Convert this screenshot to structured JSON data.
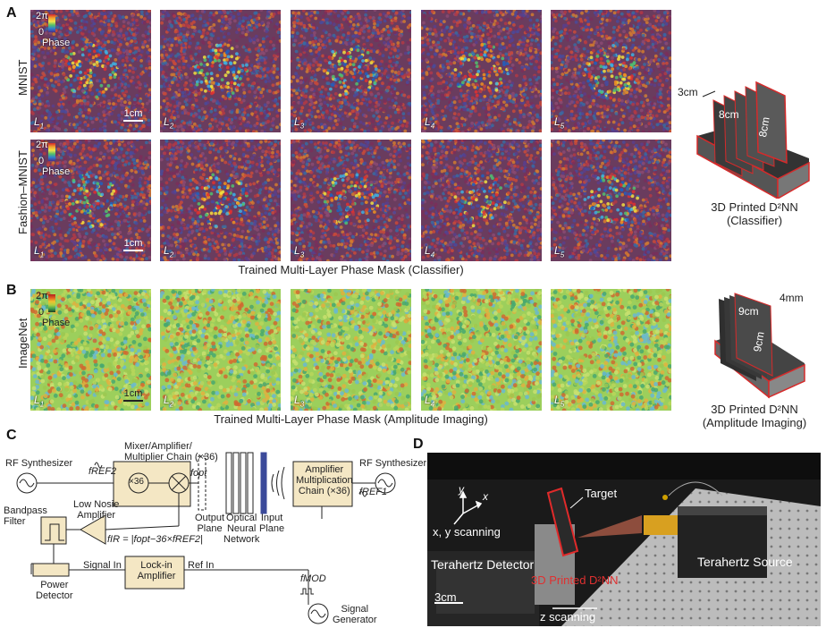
{
  "panels": {
    "a": "A",
    "b": "B",
    "c": "C",
    "d": "D"
  },
  "panel_a": {
    "row_labels": [
      "MNIST",
      "Fashion–MNIST"
    ],
    "layer_labels": [
      "L1",
      "L2",
      "L3",
      "L4",
      "L5"
    ],
    "colorbar_top": "2π",
    "colorbar_bottom": "0",
    "colorbar_label": "Phase",
    "scale_label": "1cm",
    "caption": "Trained Multi-Layer Phase Mask (Classifier)",
    "device_dims": [
      "3cm",
      "8cm",
      "8cm"
    ],
    "device_caption_1": "3D Printed D²NN",
    "device_caption_2": "(Classifier)"
  },
  "panel_b": {
    "row_label": "ImageNet",
    "layer_labels": [
      "L1",
      "L2",
      "L3",
      "L4",
      "L5"
    ],
    "colorbar_top": "2π",
    "colorbar_bottom": "0",
    "colorbar_label": "Phase",
    "scale_label": "1cm",
    "caption": "Trained Multi-Layer Phase Mask (Amplitude Imaging)",
    "device_dims": [
      "4mm",
      "9cm",
      "9cm"
    ],
    "device_caption_1": "3D Printed D²NN",
    "device_caption_2": "(Amplitude Imaging)"
  },
  "panel_c": {
    "rf_synth_left": "RF Synthesizer",
    "rf_synth_right": "RF Synthesizer",
    "f_ref2": "fREF2",
    "f_ref1": "fREF1",
    "mixer_title_1": "Mixer/Amplifier/",
    "mixer_title_2": "Multiplier Chain (×36)",
    "x36": "×36",
    "f_opt": "fopt",
    "bandpass_1": "Bandpass",
    "bandpass_2": "Filter",
    "lna_1": "Low Nosie",
    "lna_2": "Amplifier",
    "f_if_eq": "fIR = |fopt−36×fREF2|",
    "output_plane_1": "Output",
    "output_plane_2": "Plane",
    "onn_1": "Optical",
    "onn_2": "Neural",
    "onn_3": "Network",
    "input_plane_1": "Input",
    "input_plane_2": "Plane",
    "amp_chain_1": "Amplifier",
    "amp_chain_2": "Multiplication",
    "amp_chain_3": "Chain (×36)",
    "signal_in": "Signal In",
    "ref_in": "Ref In",
    "lockin_1": "Lock-in",
    "lockin_2": "Amplifier",
    "power_det_1": "Power",
    "power_det_2": "Detector",
    "f_mod": "fMOD",
    "sig_gen_1": "Signal",
    "sig_gen_2": "Generator"
  },
  "panel_d": {
    "y": "y",
    "x": "x",
    "xy_scan": "x, y scanning",
    "target": "Target",
    "thz_detector": "Terahertz Detector",
    "printed": "3D Printed D²NN",
    "thz_source": "Terahertz Source",
    "scale": "3cm",
    "z_scan": "z scanning"
  },
  "colors": {
    "mask_purple": "#6d3a5c",
    "colorbar_red": "#c0282a",
    "highlight_red": "#e02a2a",
    "box_fill": "#f4e7c4"
  }
}
